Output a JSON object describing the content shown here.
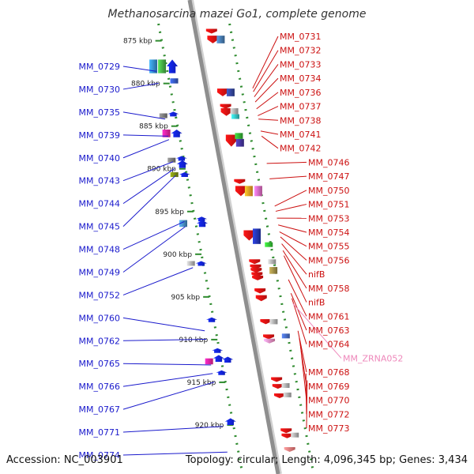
{
  "title": "Methanosarcina mazei Go1, complete genome",
  "footer": {
    "accession": "Accession: NC_003901",
    "topology": "Topology: circular; Length: 4,096,345 bp; Genes: 3,434"
  },
  "colors": {
    "backbone": "#8e8e8e",
    "guide": "#2e8b2e",
    "left_label": "#1a1acc",
    "right_label": "#cc1111",
    "rna_label": "#ee88bb"
  },
  "scale": {
    "start_kbp": 873,
    "end_kbp": 925,
    "ticks": [
      "875 kbp",
      "880 kbp",
      "885 kbp",
      "890 kbp",
      "895 kbp",
      "900 kbp",
      "905 kbp",
      "910 kbp",
      "915 kbp",
      "920 kbp"
    ],
    "tick_kbp": [
      875,
      880,
      885,
      890,
      895,
      900,
      905,
      910,
      915,
      920
    ]
  },
  "labels_left": [
    {
      "name": "MM_0729",
      "kbp": 878.2
    },
    {
      "name": "MM_0730",
      "kbp": 879.6
    },
    {
      "name": "MM_0735",
      "kbp": 883.8
    },
    {
      "name": "MM_0739",
      "kbp": 885.8
    },
    {
      "name": "MM_0740",
      "kbp": 886.2
    },
    {
      "name": "MM_0743",
      "kbp": 888.8
    },
    {
      "name": "MM_0744",
      "kbp": 889.6
    },
    {
      "name": "MM_0745",
      "kbp": 890.4
    },
    {
      "name": "MM_0748",
      "kbp": 895.8
    },
    {
      "name": "MM_0749",
      "kbp": 896.4
    },
    {
      "name": "MM_0752",
      "kbp": 901.2
    },
    {
      "name": "MM_0760",
      "kbp": 908.6
    },
    {
      "name": "MM_0762",
      "kbp": 909.6
    },
    {
      "name": "MM_0765",
      "kbp": 912.6
    },
    {
      "name": "MM_0766",
      "kbp": 913.6
    },
    {
      "name": "MM_0767",
      "kbp": 914.6
    },
    {
      "name": "MM_0771",
      "kbp": 919.8
    },
    {
      "name": "MM_0774",
      "kbp": 922.8
    }
  ],
  "labels_right": [
    {
      "name": "MM_0731",
      "kbp": 880.2,
      "rna": false
    },
    {
      "name": "MM_0732",
      "kbp": 880.6,
      "rna": false
    },
    {
      "name": "MM_0733",
      "kbp": 881.2,
      "rna": false
    },
    {
      "name": "MM_0734",
      "kbp": 881.8,
      "rna": false
    },
    {
      "name": "MM_0736",
      "kbp": 882.6,
      "rna": false
    },
    {
      "name": "MM_0737",
      "kbp": 883.4,
      "rna": false
    },
    {
      "name": "MM_0738",
      "kbp": 883.8,
      "rna": false
    },
    {
      "name": "MM_0741",
      "kbp": 885.2,
      "rna": false
    },
    {
      "name": "MM_0742",
      "kbp": 885.8,
      "rna": false
    },
    {
      "name": "MM_0746",
      "kbp": 889.0,
      "rna": false
    },
    {
      "name": "MM_0747",
      "kbp": 890.8,
      "rna": false
    },
    {
      "name": "MM_0750",
      "kbp": 894.0,
      "rna": false
    },
    {
      "name": "MM_0751",
      "kbp": 894.6,
      "rna": false
    },
    {
      "name": "MM_0753",
      "kbp": 895.4,
      "rna": false
    },
    {
      "name": "MM_0754",
      "kbp": 896.2,
      "rna": false
    },
    {
      "name": "MM_0755",
      "kbp": 897.0,
      "rna": false
    },
    {
      "name": "MM_0756",
      "kbp": 897.6,
      "rna": false
    },
    {
      "name": "nifB",
      "kbp": 898.4,
      "rna": false
    },
    {
      "name": "MM_0758",
      "kbp": 899.2,
      "rna": false
    },
    {
      "name": "nifB",
      "kbp": 899.8,
      "rna": false
    },
    {
      "name": "MM_0761",
      "kbp": 902.6,
      "rna": false
    },
    {
      "name": "MM_0763",
      "kbp": 904.2,
      "rna": false
    },
    {
      "name": "MM_0764",
      "kbp": 904.8,
      "rna": false
    },
    {
      "name": "MM_ZRNA052",
      "kbp": 905.4,
      "rna": true
    },
    {
      "name": "MM_0768",
      "kbp": 908.6,
      "rna": false
    },
    {
      "name": "MM_0769",
      "kbp": 909.4,
      "rna": false
    },
    {
      "name": "MM_0770",
      "kbp": 910.0,
      "rna": false
    },
    {
      "name": "MM_0772",
      "kbp": 913.6,
      "rna": false
    },
    {
      "name": "MM_0773",
      "kbp": 914.4,
      "rna": false
    }
  ],
  "features": [
    {
      "strand": "-",
      "kbp": 873.6,
      "len": 0.4,
      "kind": "arrow",
      "color": "#ee1111"
    },
    {
      "strand": "-",
      "kbp": 874.4,
      "len": 0.9,
      "kind": "arrow",
      "color": "#ee1111"
    },
    {
      "strand": "-",
      "kbp": 874.4,
      "len": 0.9,
      "kind": "box",
      "color": "#4477aa",
      "lane": 1
    },
    {
      "strand": "+",
      "kbp": 877.2,
      "len": 1.6,
      "kind": "box",
      "color": "#3388cc",
      "lane": 0
    },
    {
      "strand": "+",
      "kbp": 877.2,
      "len": 1.6,
      "kind": "box",
      "color": "#44aa44",
      "lane": 1
    },
    {
      "strand": "+",
      "kbp": 877.2,
      "len": 1.6,
      "kind": "arrow",
      "color": "#1122ee",
      "lane": 2
    },
    {
      "strand": "+",
      "kbp": 879.4,
      "len": 0.6,
      "kind": "box",
      "color": "#3355bb",
      "lane": 2
    },
    {
      "strand": "-",
      "kbp": 880.6,
      "len": 0.9,
      "kind": "arrow",
      "color": "#ee1111"
    },
    {
      "strand": "-",
      "kbp": 880.6,
      "len": 0.9,
      "kind": "box",
      "color": "#334499",
      "lane": 1
    },
    {
      "strand": "-",
      "kbp": 882.4,
      "len": 0.3,
      "kind": "arrow",
      "color": "#ee1111"
    },
    {
      "strand": "-",
      "kbp": 882.9,
      "len": 0.9,
      "kind": "arrow",
      "color": "#ee1111"
    },
    {
      "strand": "-",
      "kbp": 882.9,
      "len": 0.7,
      "kind": "box",
      "color": "#aaaaaa",
      "lane": 1
    },
    {
      "strand": "-",
      "kbp": 883.6,
      "len": 0.3,
      "kind": "box",
      "color": "#33bbbb",
      "lane": 1
    },
    {
      "strand": "+",
      "kbp": 883.5,
      "len": 0.2,
      "kind": "box",
      "color": "#777777",
      "lane": 0
    },
    {
      "strand": "+",
      "kbp": 883.3,
      "len": 0.4,
      "kind": "arrow",
      "color": "#1122ee",
      "lane": 1
    },
    {
      "strand": "+",
      "kbp": 885.4,
      "len": 0.9,
      "kind": "box",
      "color": "#ee2299",
      "lane": 0
    },
    {
      "strand": "+",
      "kbp": 885.4,
      "len": 0.9,
      "kind": "arrow",
      "color": "#1122ee",
      "lane": 1
    },
    {
      "strand": "-",
      "kbp": 886.0,
      "len": 1.4,
      "kind": "arrow",
      "color": "#ee1111"
    },
    {
      "strand": "-",
      "kbp": 885.8,
      "len": 0.7,
      "kind": "box",
      "color": "#33aa33",
      "lane": 1
    },
    {
      "strand": "-",
      "kbp": 886.5,
      "len": 0.9,
      "kind": "box",
      "color": "#443399",
      "lane": 1
    },
    {
      "strand": "+",
      "kbp": 888.5,
      "len": 0.3,
      "kind": "arrow",
      "color": "#1122ee",
      "lane": 1
    },
    {
      "strand": "+",
      "kbp": 888.7,
      "len": 0.2,
      "kind": "box",
      "color": "#777777",
      "lane": 0
    },
    {
      "strand": "+",
      "kbp": 889.0,
      "len": 0.9,
      "kind": "arrow",
      "color": "#1122ee",
      "lane": 1
    },
    {
      "strand": "+",
      "kbp": 890.4,
      "len": 0.3,
      "kind": "arrow",
      "color": "#1122ee",
      "lane": 1
    },
    {
      "strand": "+",
      "kbp": 890.4,
      "len": 0.5,
      "kind": "box",
      "color": "#778811",
      "lane": 0
    },
    {
      "strand": "-",
      "kbp": 891.2,
      "len": 0.3,
      "kind": "arrow",
      "color": "#ee1111"
    },
    {
      "strand": "-",
      "kbp": 892.0,
      "len": 1.2,
      "kind": "arrow",
      "color": "#ee1111"
    },
    {
      "strand": "-",
      "kbp": 892.0,
      "len": 1.2,
      "kind": "box",
      "color": "#ee9922",
      "lane": 1
    },
    {
      "strand": "-",
      "kbp": 892.0,
      "len": 1.2,
      "kind": "box",
      "color": "#dd66bb",
      "lane": 2
    },
    {
      "strand": "+",
      "kbp": 895.6,
      "len": 0.2,
      "kind": "arrow",
      "color": "#1122ee",
      "lane": 2
    },
    {
      "strand": "+",
      "kbp": 896.0,
      "len": 0.8,
      "kind": "box",
      "color": "#4488bb",
      "lane": 0
    },
    {
      "strand": "+",
      "kbp": 896.0,
      "len": 0.8,
      "kind": "arrow",
      "color": "#1122ee",
      "lane": 2
    },
    {
      "strand": "-",
      "kbp": 897.2,
      "len": 1.2,
      "kind": "arrow",
      "color": "#ee1111"
    },
    {
      "strand": "-",
      "kbp": 897.0,
      "len": 1.8,
      "kind": "box",
      "color": "#2233aa",
      "lane": 1
    },
    {
      "strand": "-",
      "kbp": 898.6,
      "len": 0.4,
      "kind": "box",
      "color": "#33bb33",
      "lane": 2
    },
    {
      "strand": "+",
      "kbp": 900.8,
      "len": 0.3,
      "kind": "box",
      "color": "#aaaaaa",
      "lane": 0
    },
    {
      "strand": "+",
      "kbp": 900.8,
      "len": 0.3,
      "kind": "arrow",
      "color": "#1122ee",
      "lane": 1
    },
    {
      "strand": "-",
      "kbp": 900.6,
      "len": 0.3,
      "kind": "arrow",
      "color": "#ee1111"
    },
    {
      "strand": "-",
      "kbp": 900.6,
      "len": 0.4,
      "kind": "box",
      "color": "#aaaaaa",
      "lane": 2
    },
    {
      "strand": "-",
      "kbp": 901.2,
      "len": 0.3,
      "kind": "arrow",
      "color": "#ee1111"
    },
    {
      "strand": "-",
      "kbp": 901.6,
      "len": 0.3,
      "kind": "arrow",
      "color": "#ee1111"
    },
    {
      "strand": "-",
      "kbp": 901.5,
      "len": 0.8,
      "kind": "box",
      "color": "#998844",
      "lane": 2
    },
    {
      "strand": "-",
      "kbp": 902.1,
      "len": 0.3,
      "kind": "arrow",
      "color": "#ee1111"
    },
    {
      "strand": "-",
      "kbp": 902.5,
      "len": 0.3,
      "kind": "arrow",
      "color": "#ee1111"
    },
    {
      "strand": "-",
      "kbp": 904.0,
      "len": 0.6,
      "kind": "arrow",
      "color": "#ee1111"
    },
    {
      "strand": "-",
      "kbp": 904.8,
      "len": 0.7,
      "kind": "arrow",
      "color": "#ee1111"
    },
    {
      "strand": "-",
      "kbp": 907.6,
      "len": 0.6,
      "kind": "arrow",
      "color": "#ee1111"
    },
    {
      "strand": "-",
      "kbp": 907.6,
      "len": 0.6,
      "kind": "box",
      "color": "#aaaaaa",
      "lane": 1
    },
    {
      "strand": "+",
      "kbp": 907.4,
      "len": 0.2,
      "kind": "arrow",
      "color": "#1122ee",
      "lane": 1
    },
    {
      "strand": "-",
      "kbp": 909.4,
      "len": 0.5,
      "kind": "arrow",
      "color": "#ee1111"
    },
    {
      "strand": "-",
      "kbp": 909.3,
      "len": 0.4,
      "kind": "box",
      "color": "#4466bb",
      "lane": 2
    },
    {
      "strand": "-",
      "kbp": 909.9,
      "len": 0.2,
      "kind": "arrow",
      "color": "#ee88bb"
    },
    {
      "strand": "+",
      "kbp": 911.0,
      "len": 0.3,
      "kind": "arrow",
      "color": "#1122ee",
      "lane": 1
    },
    {
      "strand": "+",
      "kbp": 911.8,
      "len": 0.8,
      "kind": "arrow",
      "color": "#1122ee",
      "lane": 1
    },
    {
      "strand": "+",
      "kbp": 912.2,
      "len": 0.7,
      "kind": "box",
      "color": "#ee2299",
      "lane": 0
    },
    {
      "strand": "+",
      "kbp": 912.0,
      "len": 0.7,
      "kind": "arrow",
      "color": "#1122ee",
      "lane": 2
    },
    {
      "strand": "+",
      "kbp": 913.6,
      "len": 0.2,
      "kind": "arrow",
      "color": "#1122ee",
      "lane": 1
    },
    {
      "strand": "-",
      "kbp": 914.4,
      "len": 0.4,
      "kind": "arrow",
      "color": "#ee1111"
    },
    {
      "strand": "-",
      "kbp": 915.2,
      "len": 0.3,
      "kind": "arrow",
      "color": "#ee1111"
    },
    {
      "strand": "-",
      "kbp": 915.1,
      "len": 0.4,
      "kind": "box",
      "color": "#aaaaaa",
      "lane": 1
    },
    {
      "strand": "-",
      "kbp": 916.3,
      "len": 0.4,
      "kind": "arrow",
      "color": "#ee1111"
    },
    {
      "strand": "-",
      "kbp": 916.2,
      "len": 0.5,
      "kind": "box",
      "color": "#aaaaaa",
      "lane": 1
    },
    {
      "strand": "+",
      "kbp": 919.2,
      "len": 0.8,
      "kind": "arrow",
      "color": "#1122ee",
      "lane": 1
    },
    {
      "strand": "-",
      "kbp": 920.4,
      "len": 0.2,
      "kind": "arrow",
      "color": "#ee1111"
    },
    {
      "strand": "-",
      "kbp": 921.0,
      "len": 0.2,
      "kind": "arrow",
      "color": "#ee1111"
    },
    {
      "strand": "-",
      "kbp": 920.9,
      "len": 0.3,
      "kind": "box",
      "color": "#aaaaaa",
      "lane": 1
    },
    {
      "strand": "-",
      "kbp": 922.6,
      "len": 0.5,
      "kind": "arrow",
      "color": "#ee7777"
    }
  ]
}
